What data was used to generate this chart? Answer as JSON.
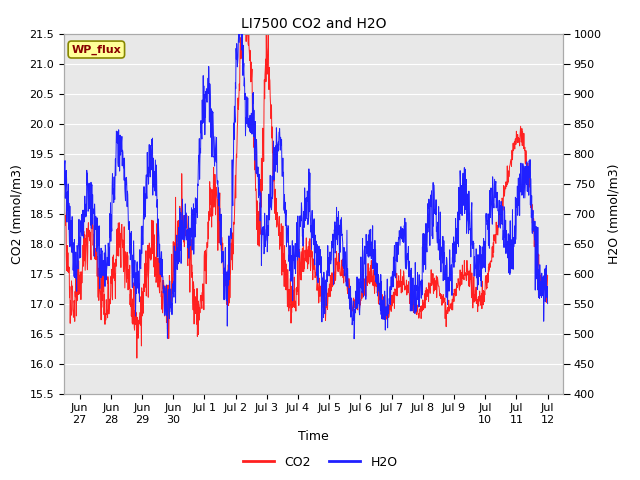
{
  "title": "LI7500 CO2 and H2O",
  "xlabel": "Time",
  "ylabel_left": "CO2 (mmol/m3)",
  "ylabel_right": "H2O (mmol/m3)",
  "ylim_left": [
    15.5,
    21.5
  ],
  "ylim_right": [
    400,
    1000
  ],
  "yticks_left": [
    15.5,
    16.0,
    16.5,
    17.0,
    17.5,
    18.0,
    18.5,
    19.0,
    19.5,
    20.0,
    20.5,
    21.0,
    21.5
  ],
  "yticks_right": [
    400,
    450,
    500,
    550,
    600,
    650,
    700,
    750,
    800,
    850,
    900,
    950,
    1000
  ],
  "xtick_labels": [
    "Jun\n27",
    "Jun\n28",
    "Jun\n29",
    "Jun\n30",
    "Jul 1",
    "Jul 2",
    "Jul 3",
    "Jul 4",
    "Jul 5",
    "Jul 6",
    "Jul 7",
    "Jul 8",
    "Jul 9",
    "Jul\n10",
    "Jul\n11",
    "Jul\n12"
  ],
  "text_box_label": "WP_flux",
  "text_box_bg": "#ffff99",
  "text_box_edge": "#888800",
  "text_box_text_color": "#880000",
  "co2_color": "#ff2020",
  "h2o_color": "#2020ff",
  "plot_bg_color": "#e8e8e8",
  "grid_color": "#ffffff",
  "title_fontsize": 10,
  "axis_fontsize": 9,
  "tick_fontsize": 8,
  "legend_fontsize": 9
}
